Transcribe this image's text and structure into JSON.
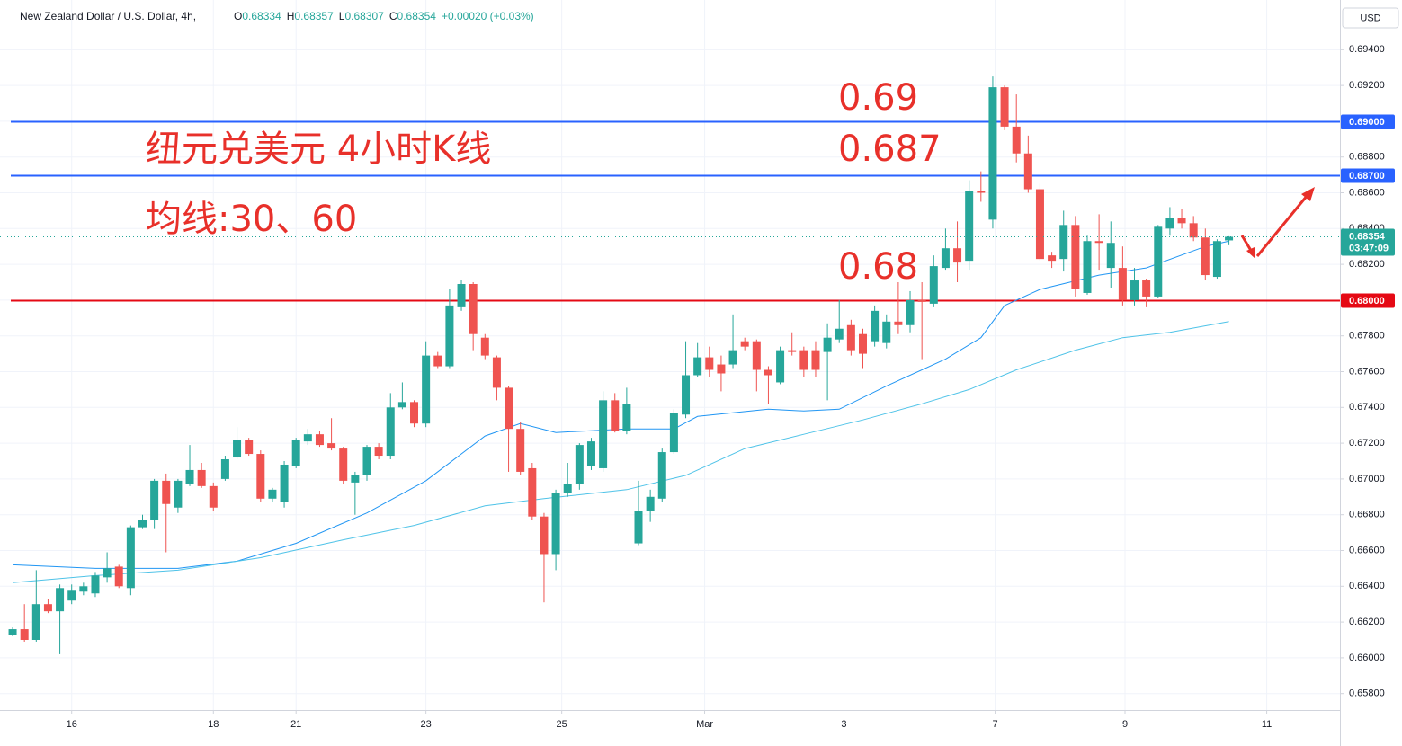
{
  "chart_data": {
    "type": "candlestick",
    "title": "New Zealand Dollar / U.S. Dollar, 4h,",
    "ohlc_legend": [
      {
        "label": "O",
        "value": 0.68334
      },
      {
        "label": "H",
        "value": 0.68357
      },
      {
        "label": "L",
        "value": 0.68307
      },
      {
        "label": "C",
        "value": 0.68354
      }
    ],
    "change": "+0.00020 (+0.03%)",
    "currency": "USD",
    "annotations": [
      "纽元兑美元 4小时K线",
      "均线:30、60",
      "0.69",
      "0.687",
      "0.68"
    ],
    "up_color": "#26a69a",
    "down_color": "#ef5350",
    "open": [
      0.6613,
      0.6616,
      0.661,
      0.663,
      0.6626,
      0.6632,
      0.6637,
      0.6636,
      0.6645,
      0.6651,
      0.6639,
      0.6673,
      0.6677,
      0.6699,
      0.6684,
      0.6697,
      0.6705,
      0.6696,
      0.67,
      0.6712,
      0.6722,
      0.6714,
      0.6689,
      0.6687,
      0.6707,
      0.6721,
      0.6725,
      0.672,
      0.6717,
      0.6698,
      0.6702,
      0.6718,
      0.6713,
      0.674,
      0.6743,
      0.6731,
      0.6769,
      0.6763,
      0.6796,
      0.6809,
      0.6779,
      0.6768,
      0.6751,
      0.6728,
      0.6706,
      0.6679,
      0.6658,
      0.6692,
      0.6697,
      0.6707,
      0.6706,
      0.6744,
      0.6727,
      0.6664,
      0.6682,
      0.6689,
      0.6715,
      0.6736,
      0.6758,
      0.6768,
      0.6764,
      0.6764,
      0.6777,
      0.6777,
      0.6761,
      0.6754,
      0.6772,
      0.6772,
      0.6772,
      0.6771,
      0.6778,
      0.6786,
      0.6781,
      0.6777,
      0.6776,
      0.6788,
      0.6786,
      0.68,
      0.6798,
      0.6818,
      0.6829,
      0.6822,
      0.6861,
      0.6845,
      0.6919,
      0.6897,
      0.6882,
      0.6862,
      0.6825,
      0.6823,
      0.6842,
      0.6804,
      0.6833,
      0.6818,
      0.6818,
      0.68,
      0.6811,
      0.6802,
      0.684,
      0.6846,
      0.6843,
      0.6835,
      0.6813,
      0.68334
    ],
    "high": [
      0.6617,
      0.663,
      0.6649,
      0.6633,
      0.6641,
      0.6641,
      0.6642,
      0.6648,
      0.6659,
      0.6652,
      0.6674,
      0.668,
      0.67,
      0.6703,
      0.67,
      0.6719,
      0.6709,
      0.6698,
      0.6713,
      0.6729,
      0.6723,
      0.6716,
      0.6695,
      0.671,
      0.6723,
      0.6728,
      0.6727,
      0.6734,
      0.6718,
      0.6704,
      0.6719,
      0.672,
      0.6748,
      0.6754,
      0.6744,
      0.6777,
      0.6771,
      0.6806,
      0.6811,
      0.681,
      0.6781,
      0.6769,
      0.6752,
      0.6732,
      0.6709,
      0.6681,
      0.6694,
      0.6709,
      0.672,
      0.6723,
      0.6749,
      0.6748,
      0.6751,
      0.6699,
      0.6694,
      0.6717,
      0.6739,
      0.6777,
      0.6776,
      0.6774,
      0.6769,
      0.6792,
      0.6779,
      0.6778,
      0.6763,
      0.6774,
      0.6782,
      0.6774,
      0.6777,
      0.6787,
      0.68,
      0.6789,
      0.6784,
      0.6797,
      0.6792,
      0.681,
      0.6805,
      0.681,
      0.6825,
      0.684,
      0.6844,
      0.6867,
      0.6872,
      0.6925,
      0.692,
      0.6915,
      0.6892,
      0.6865,
      0.6827,
      0.685,
      0.6847,
      0.6836,
      0.6848,
      0.6844,
      0.683,
      0.6818,
      0.6812,
      0.6842,
      0.6852,
      0.6851,
      0.6847,
      0.684,
      0.6834,
      0.68357
    ],
    "low": [
      0.6612,
      0.6609,
      0.6609,
      0.6625,
      0.6602,
      0.663,
      0.6635,
      0.6634,
      0.6642,
      0.6639,
      0.6635,
      0.6672,
      0.6672,
      0.6659,
      0.6681,
      0.6696,
      0.6695,
      0.6682,
      0.6699,
      0.6711,
      0.6713,
      0.6687,
      0.6687,
      0.6684,
      0.6706,
      0.6719,
      0.6718,
      0.6716,
      0.6697,
      0.668,
      0.6699,
      0.6711,
      0.6711,
      0.6739,
      0.6729,
      0.6729,
      0.6762,
      0.6762,
      0.6794,
      0.6772,
      0.6767,
      0.6744,
      0.6704,
      0.6702,
      0.6677,
      0.6631,
      0.6649,
      0.669,
      0.6694,
      0.6705,
      0.6704,
      0.6726,
      0.6725,
      0.6663,
      0.6676,
      0.6687,
      0.6714,
      0.6734,
      0.6757,
      0.6757,
      0.6749,
      0.6762,
      0.6772,
      0.6749,
      0.6742,
      0.6753,
      0.6769,
      0.6757,
      0.6757,
      0.6744,
      0.6776,
      0.6769,
      0.6762,
      0.6774,
      0.6773,
      0.6781,
      0.6782,
      0.6767,
      0.6796,
      0.6817,
      0.681,
      0.6817,
      0.6855,
      0.684,
      0.6895,
      0.6877,
      0.686,
      0.6822,
      0.6818,
      0.6816,
      0.6802,
      0.6803,
      0.6817,
      0.6807,
      0.6797,
      0.6797,
      0.6796,
      0.6801,
      0.6836,
      0.684,
      0.6833,
      0.6811,
      0.6812,
      0.68307
    ],
    "close": [
      0.6616,
      0.661,
      0.663,
      0.6626,
      0.6639,
      0.6638,
      0.664,
      0.6646,
      0.665,
      0.664,
      0.6673,
      0.6677,
      0.6699,
      0.6686,
      0.6699,
      0.6705,
      0.6696,
      0.6684,
      0.6711,
      0.6722,
      0.6714,
      0.6689,
      0.6694,
      0.6708,
      0.6722,
      0.6725,
      0.6719,
      0.6717,
      0.6699,
      0.6702,
      0.6718,
      0.6713,
      0.674,
      0.6743,
      0.6731,
      0.6769,
      0.6763,
      0.6797,
      0.6809,
      0.6781,
      0.6769,
      0.6751,
      0.6728,
      0.6704,
      0.6679,
      0.6658,
      0.6692,
      0.6697,
      0.6719,
      0.6721,
      0.6744,
      0.6727,
      0.6742,
      0.6682,
      0.669,
      0.6715,
      0.6737,
      0.6758,
      0.6768,
      0.6761,
      0.6759,
      0.6772,
      0.6774,
      0.6761,
      0.6758,
      0.6772,
      0.6771,
      0.6761,
      0.6761,
      0.6779,
      0.6784,
      0.6772,
      0.677,
      0.6794,
      0.6788,
      0.6786,
      0.68,
      0.6799,
      0.6819,
      0.6829,
      0.6821,
      0.6861,
      0.686,
      0.6919,
      0.6897,
      0.6882,
      0.6862,
      0.6823,
      0.6822,
      0.6842,
      0.6806,
      0.6833,
      0.6832,
      0.6832,
      0.68,
      0.6811,
      0.6802,
      0.6841,
      0.6846,
      0.6843,
      0.6835,
      0.6814,
      0.6833,
      0.68354
    ],
    "lines": [
      {
        "color": "#2196f3",
        "x": [
          0,
          7,
          14,
          19,
          24,
          30,
          35,
          40,
          43,
          46,
          52,
          56,
          58,
          64,
          67,
          70,
          74,
          79,
          82,
          84,
          87,
          92,
          96,
          101,
          103
        ],
        "values": [
          0.6652,
          0.665,
          0.665,
          0.6654,
          0.6664,
          0.6681,
          0.6699,
          0.6724,
          0.6731,
          0.6726,
          0.6728,
          0.6728,
          0.6735,
          0.6739,
          0.6738,
          0.6739,
          0.6752,
          0.6767,
          0.6779,
          0.6797,
          0.6806,
          0.6814,
          0.6818,
          0.683,
          0.6833
        ]
      },
      {
        "color": "#4fc3e8",
        "x": [
          0,
          7,
          14,
          21,
          28,
          34,
          40,
          45,
          52,
          57,
          62,
          67,
          72,
          77,
          81,
          85,
          90,
          94,
          98,
          103
        ],
        "values": [
          0.6642,
          0.6646,
          0.6649,
          0.6656,
          0.6666,
          0.6674,
          0.6685,
          0.6689,
          0.6694,
          0.6702,
          0.6717,
          0.6725,
          0.6733,
          0.6742,
          0.675,
          0.6761,
          0.6772,
          0.6779,
          0.6782,
          0.6788
        ]
      }
    ],
    "hlines": [
      {
        "value": 0.69,
        "label": "0.69000",
        "color": "#2962ff"
      },
      {
        "value": 0.687,
        "label": "0.68700",
        "color": "#2962ff"
      },
      {
        "value": 0.68,
        "label": "0.68000",
        "color": "#e50914"
      }
    ],
    "last_price": {
      "value": 0.68354,
      "countdown": "03:47:09",
      "color": "#26a69a"
    },
    "xlim": [
      -1.07,
      112.4
    ],
    "xticks": [
      {
        "value": 5,
        "label": "16"
      },
      {
        "value": 17,
        "label": "18"
      },
      {
        "value": 24,
        "label": "21"
      },
      {
        "value": 35,
        "label": "23"
      },
      {
        "value": 46.5,
        "label": "25"
      },
      {
        "value": 58.6,
        "label": "Mar"
      },
      {
        "value": 70.4,
        "label": "3"
      },
      {
        "value": 83.2,
        "label": "7"
      },
      {
        "value": 94.2,
        "label": "9"
      },
      {
        "value": 106.2,
        "label": "11"
      }
    ],
    "ylim": [
      0.65708,
      0.69678
    ],
    "yticks": [
      {
        "value": 0.658,
        "label": "0.65800"
      },
      {
        "value": 0.66,
        "label": "0.66000"
      },
      {
        "value": 0.662,
        "label": "0.66200"
      },
      {
        "value": 0.664,
        "label": "0.66400"
      },
      {
        "value": 0.666,
        "label": "0.66600"
      },
      {
        "value": 0.668,
        "label": "0.66800"
      },
      {
        "value": 0.67,
        "label": "0.67000"
      },
      {
        "value": 0.672,
        "label": "0.67200"
      },
      {
        "value": 0.674,
        "label": "0.67400"
      },
      {
        "value": 0.676,
        "label": "0.67600"
      },
      {
        "value": 0.678,
        "label": "0.67800"
      },
      {
        "value": 0.68,
        "label": "0.68000"
      },
      {
        "value": 0.682,
        "label": "0.68200"
      },
      {
        "value": 0.684,
        "label": "0.68400"
      },
      {
        "value": 0.686,
        "label": "0.68600"
      },
      {
        "value": 0.688,
        "label": "0.68800"
      },
      {
        "value": 0.69,
        "label": "0.69000"
      },
      {
        "value": 0.692,
        "label": "0.69200"
      },
      {
        "value": 0.694,
        "label": "0.69400"
      }
    ],
    "grid": true
  }
}
